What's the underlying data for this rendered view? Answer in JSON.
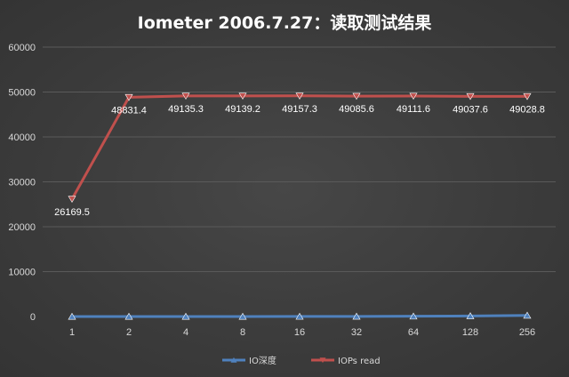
{
  "chart_data": {
    "type": "line",
    "title": "Iometer 2006.7.27：读取测试结果",
    "categories": [
      "1",
      "2",
      "4",
      "8",
      "16",
      "32",
      "64",
      "128",
      "256"
    ],
    "ylim": [
      0,
      60000
    ],
    "yticks": [
      0,
      10000,
      20000,
      30000,
      40000,
      50000,
      60000
    ],
    "grid": true,
    "legend_position": "bottom",
    "series": [
      {
        "name": "IO深度",
        "color": "#4f81bd",
        "marker": "triangle",
        "values": [
          1,
          2,
          4,
          8,
          16,
          32,
          64,
          128,
          256
        ]
      },
      {
        "name": "IOPs read",
        "color": "#c0504d",
        "marker": "triangle-down",
        "values": [
          26169.5,
          48831.4,
          49135.3,
          49139.2,
          49157.3,
          49085.6,
          49111.6,
          49037.6,
          49028.8
        ],
        "data_labels": [
          "26169.5",
          "48831.4",
          "49135.3",
          "49139.2",
          "49157.3",
          "49085.6",
          "49111.6",
          "49037.6",
          "49028.8"
        ]
      }
    ]
  }
}
